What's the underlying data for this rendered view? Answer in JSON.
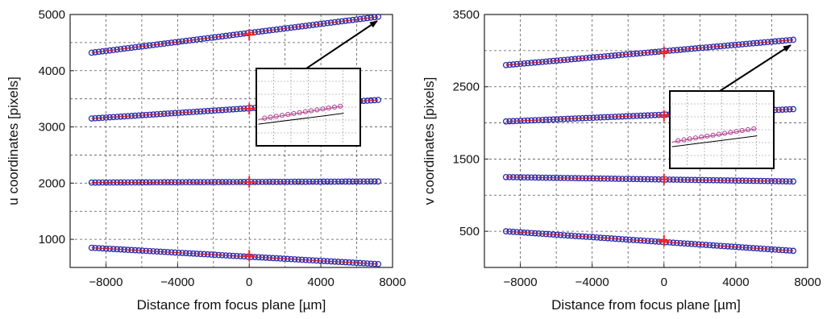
{
  "chart_data": [
    {
      "type": "scatter",
      "xlabel": "Distance from focus plane [µm]",
      "ylabel": "u coordinates [pixels]",
      "xlim": [
        -10000,
        8000
      ],
      "ylim": [
        500,
        5000
      ],
      "xticks": [
        -8000,
        -4000,
        0,
        4000,
        8000
      ],
      "xtick_labels": [
        "−8000",
        "−4000",
        "0",
        "4000",
        "8000"
      ],
      "yticks": [
        1000,
        2000,
        3000,
        4000,
        5000
      ],
      "ytick_labels": [
        "1000",
        "2000",
        "3000",
        "4000",
        "5000"
      ],
      "grid": true,
      "marker_color": "#2b2bb0",
      "fit_color": "#cc2222",
      "focus_marker_color": "#ff2020",
      "series": [
        {
          "x_start": -8800,
          "x_end": 7200,
          "y_start": 4320,
          "y_end": 4960,
          "y_at_focus": 4640
        },
        {
          "x_start": -8800,
          "x_end": 7200,
          "y_start": 3150,
          "y_end": 3480,
          "y_at_focus": 3320
        },
        {
          "x_start": -8800,
          "x_end": 7200,
          "y_start": 2010,
          "y_end": 2030,
          "y_at_focus": 2020
        },
        {
          "x_start": -8800,
          "x_end": 7200,
          "y_start": 850,
          "y_end": 560,
          "y_at_focus": 710
        }
      ],
      "inset": {
        "zooms_series_index": 0
      }
    },
    {
      "type": "scatter",
      "xlabel": "Distance from focus plane [µm]",
      "ylabel": "v coordinates [pixels]",
      "xlim": [
        -10000,
        8000
      ],
      "ylim": [
        0,
        3500
      ],
      "xticks": [
        -8000,
        -4000,
        0,
        4000,
        8000
      ],
      "xtick_labels": [
        "−8000",
        "−4000",
        "0",
        "4000",
        "8000"
      ],
      "yticks": [
        500,
        1500,
        2500,
        3500
      ],
      "ytick_labels": [
        "500",
        "1500",
        "2500",
        "3500"
      ],
      "grid": true,
      "marker_color": "#2b2bb0",
      "fit_color": "#cc2222",
      "focus_marker_color": "#ff2020",
      "series": [
        {
          "x_start": -8800,
          "x_end": 7200,
          "y_start": 2800,
          "y_end": 3150,
          "y_at_focus": 2980
        },
        {
          "x_start": -8800,
          "x_end": 7200,
          "y_start": 2020,
          "y_end": 2190,
          "y_at_focus": 2100
        },
        {
          "x_start": -8800,
          "x_end": 7200,
          "y_start": 1250,
          "y_end": 1190,
          "y_at_focus": 1220
        },
        {
          "x_start": -8800,
          "x_end": 7200,
          "y_start": 500,
          "y_end": 230,
          "y_at_focus": 370
        }
      ],
      "inset": {
        "zooms_series_index": 0
      }
    }
  ]
}
